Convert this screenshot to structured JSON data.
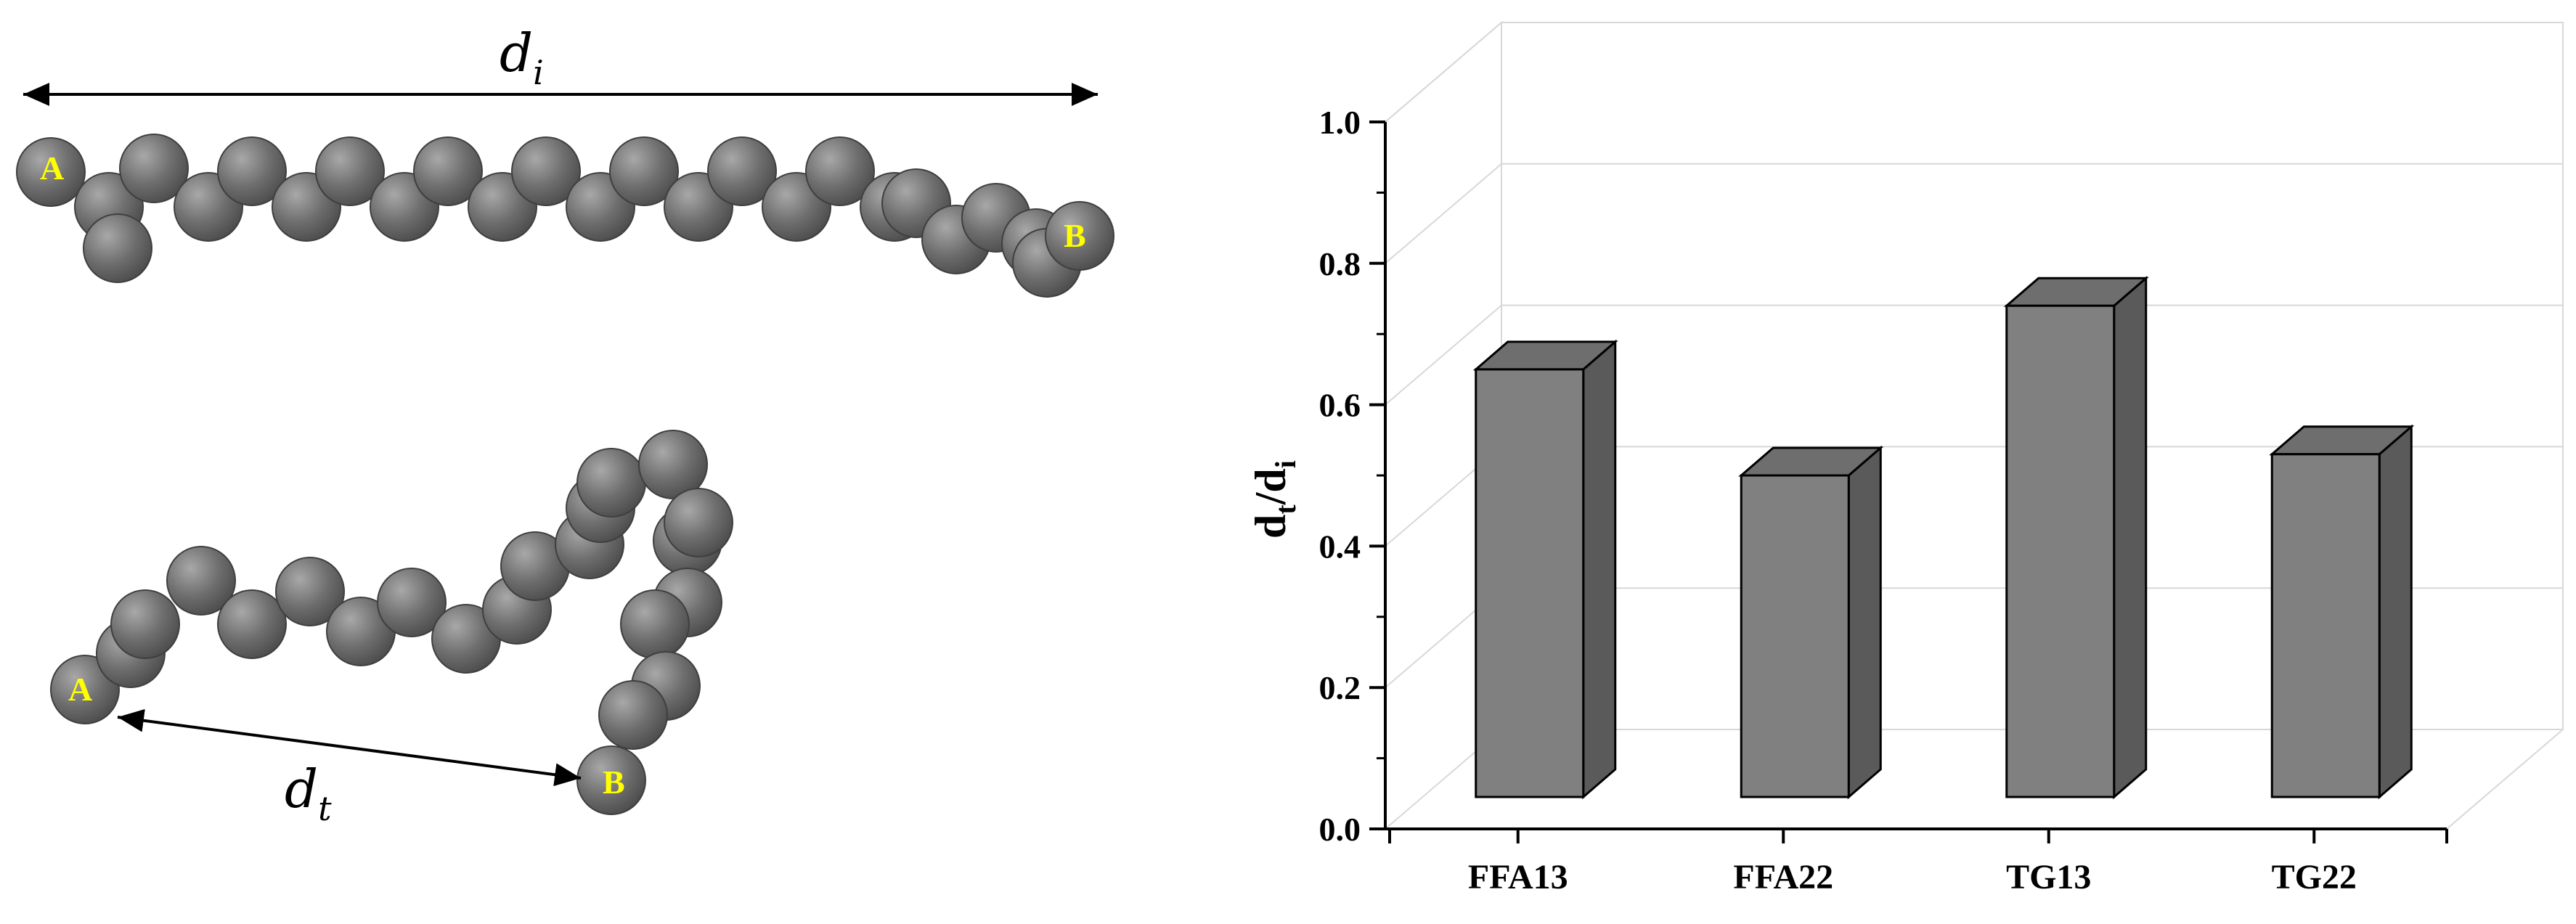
{
  "molecule_panel": {
    "extended_chain": {
      "endpoint_a": "A",
      "endpoint_b": "B",
      "distance_symbol": "d",
      "distance_subscript": "i"
    },
    "folded_chain": {
      "endpoint_a": "A",
      "endpoint_b": "B",
      "distance_symbol": "d",
      "distance_subscript": "t"
    },
    "colors": {
      "bead": "#6e6e6e",
      "endpoint_text": "#ffff00"
    }
  },
  "chart_data": {
    "type": "bar",
    "style": "3d",
    "title": "",
    "xlabel": "",
    "ylabel_main": "d",
    "ylabel_sub1": "t",
    "ylabel_slash": "/d",
    "ylabel_sub2": "i",
    "categories": [
      "FFA13",
      "FFA22",
      "TG13",
      "TG22"
    ],
    "values": [
      0.65,
      0.5,
      0.74,
      0.53
    ],
    "ylim": [
      0.0,
      1.0
    ],
    "yticks": [
      "0.0",
      "0.2",
      "0.4",
      "0.6",
      "0.8",
      "1.0"
    ],
    "grid": true,
    "legend": "none",
    "colors": {
      "bar_front": "#808080",
      "bar_top": "#6e6e6e",
      "bar_side": "#5a5a5a",
      "grid": "#d8d8d8"
    }
  }
}
